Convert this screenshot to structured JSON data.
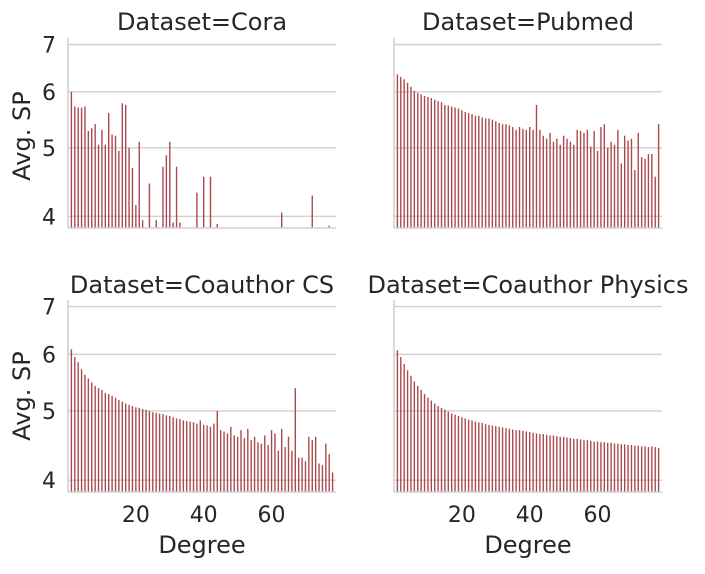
{
  "chart_data": {
    "type": "bar",
    "facet_grid": {
      "rows": 2,
      "cols": 2,
      "sharex": true,
      "sharey": true
    },
    "xlabel": "Degree",
    "ylabel": "Avg. SP",
    "xlim": [
      0,
      79
    ],
    "ylim": [
      3.85,
      7.15
    ],
    "yscale": "log",
    "xticks": [
      20,
      40,
      60
    ],
    "yticks": [
      4,
      5,
      6,
      7
    ],
    "grid": "horizontal",
    "bar_color": "#a94a4f",
    "panels": [
      {
        "title": "Dataset=Cora",
        "x": [
          1,
          2,
          3,
          4,
          5,
          6,
          7,
          8,
          9,
          10,
          11,
          12,
          13,
          14,
          15,
          16,
          17,
          18,
          19,
          20,
          21,
          22,
          24,
          26,
          28,
          29,
          30,
          31,
          32,
          33,
          38,
          40,
          42,
          44,
          63,
          72,
          77
        ],
        "values": [
          6.0,
          5.72,
          5.7,
          5.7,
          5.72,
          5.28,
          5.33,
          5.4,
          5.05,
          5.3,
          5.05,
          5.6,
          5.22,
          5.2,
          4.95,
          5.78,
          5.75,
          5.0,
          4.68,
          4.15,
          5.1,
          3.95,
          4.45,
          3.95,
          4.7,
          4.88,
          5.1,
          3.92,
          4.7,
          3.92,
          4.32,
          4.55,
          4.55,
          3.9,
          4.05,
          4.28,
          3.88
        ]
      },
      {
        "title": "Dataset=Pubmed",
        "x": [
          1,
          2,
          3,
          4,
          5,
          6,
          7,
          8,
          9,
          10,
          11,
          12,
          13,
          14,
          15,
          16,
          17,
          18,
          19,
          20,
          21,
          22,
          23,
          24,
          25,
          26,
          27,
          28,
          29,
          30,
          31,
          32,
          33,
          34,
          35,
          36,
          37,
          38,
          39,
          40,
          41,
          42,
          43,
          44,
          45,
          46,
          47,
          48,
          49,
          50,
          51,
          52,
          53,
          54,
          55,
          56,
          57,
          58,
          59,
          60,
          61,
          62,
          63,
          64,
          65,
          66,
          67,
          68,
          69,
          70,
          71,
          72,
          73,
          74,
          75,
          76,
          77,
          78
        ],
        "values": [
          6.35,
          6.3,
          6.25,
          6.18,
          6.1,
          6.02,
          5.98,
          5.95,
          5.92,
          5.9,
          5.88,
          5.85,
          5.82,
          5.8,
          5.75,
          5.74,
          5.72,
          5.7,
          5.68,
          5.65,
          5.62,
          5.6,
          5.58,
          5.55,
          5.55,
          5.52,
          5.5,
          5.5,
          5.48,
          5.45,
          5.42,
          5.4,
          5.4,
          5.38,
          5.35,
          5.3,
          5.35,
          5.32,
          5.3,
          5.35,
          5.3,
          5.75,
          5.3,
          5.2,
          5.15,
          5.25,
          5.1,
          5.15,
          5.05,
          5.2,
          5.15,
          5.1,
          5.05,
          5.3,
          5.28,
          5.25,
          5.3,
          5.02,
          5.28,
          4.95,
          5.35,
          5.4,
          5.0,
          5.1,
          5.05,
          5.3,
          4.75,
          5.2,
          5.12,
          5.15,
          4.65,
          5.25,
          4.85,
          4.82,
          4.9,
          4.9,
          4.55,
          5.4
        ]
      },
      {
        "title": "Dataset=Coauthor CS",
        "x": [
          1,
          2,
          3,
          4,
          5,
          6,
          7,
          8,
          9,
          10,
          11,
          12,
          13,
          14,
          15,
          16,
          17,
          18,
          19,
          20,
          21,
          22,
          23,
          24,
          25,
          26,
          27,
          28,
          29,
          30,
          31,
          32,
          33,
          34,
          35,
          36,
          37,
          38,
          39,
          40,
          41,
          42,
          43,
          44,
          45,
          46,
          47,
          48,
          49,
          50,
          51,
          52,
          53,
          54,
          55,
          56,
          57,
          58,
          59,
          60,
          61,
          62,
          63,
          64,
          65,
          66,
          67,
          68,
          69,
          70,
          71,
          72,
          73,
          74,
          75,
          76,
          77,
          78
        ],
        "values": [
          6.1,
          5.95,
          5.85,
          5.72,
          5.62,
          5.55,
          5.48,
          5.42,
          5.38,
          5.35,
          5.3,
          5.28,
          5.25,
          5.22,
          5.18,
          5.15,
          5.12,
          5.1,
          5.08,
          5.06,
          5.05,
          5.03,
          5.02,
          5.0,
          4.98,
          4.97,
          4.96,
          4.95,
          4.93,
          4.92,
          4.9,
          4.88,
          4.87,
          4.85,
          4.84,
          4.83,
          4.82,
          4.8,
          4.85,
          4.78,
          4.77,
          4.75,
          4.8,
          5.0,
          4.7,
          4.68,
          4.65,
          4.75,
          4.62,
          4.6,
          4.7,
          4.58,
          4.72,
          4.55,
          4.6,
          4.52,
          4.5,
          4.62,
          4.48,
          4.7,
          4.65,
          4.4,
          4.72,
          4.45,
          4.6,
          4.4,
          5.38,
          4.3,
          4.3,
          4.25,
          4.6,
          4.55,
          4.6,
          4.22,
          4.2,
          4.5,
          4.35,
          4.1
        ]
      },
      {
        "title": "Dataset=Coauthor Physics",
        "x": [
          1,
          2,
          3,
          4,
          5,
          6,
          7,
          8,
          9,
          10,
          11,
          12,
          13,
          14,
          15,
          16,
          17,
          18,
          19,
          20,
          21,
          22,
          23,
          24,
          25,
          26,
          27,
          28,
          29,
          30,
          31,
          32,
          33,
          34,
          35,
          36,
          37,
          38,
          39,
          40,
          41,
          42,
          43,
          44,
          45,
          46,
          47,
          48,
          49,
          50,
          51,
          52,
          53,
          54,
          55,
          56,
          57,
          58,
          59,
          60,
          61,
          62,
          63,
          64,
          65,
          66,
          67,
          68,
          69,
          70,
          71,
          72,
          73,
          74,
          75,
          76,
          77,
          78
        ],
        "values": [
          6.08,
          5.95,
          5.82,
          5.7,
          5.6,
          5.5,
          5.42,
          5.35,
          5.28,
          5.22,
          5.17,
          5.12,
          5.08,
          5.05,
          5.02,
          4.99,
          4.96,
          4.94,
          4.92,
          4.9,
          4.88,
          4.86,
          4.85,
          4.83,
          4.82,
          4.81,
          4.79,
          4.78,
          4.77,
          4.76,
          4.75,
          4.74,
          4.73,
          4.72,
          4.71,
          4.7,
          4.7,
          4.69,
          4.68,
          4.67,
          4.66,
          4.65,
          4.64,
          4.64,
          4.63,
          4.62,
          4.62,
          4.61,
          4.6,
          4.6,
          4.59,
          4.58,
          4.57,
          4.57,
          4.56,
          4.55,
          4.55,
          4.54,
          4.53,
          4.53,
          4.52,
          4.52,
          4.51,
          4.51,
          4.5,
          4.5,
          4.49,
          4.49,
          4.48,
          4.48,
          4.47,
          4.47,
          4.46,
          4.46,
          4.45,
          4.46,
          4.45,
          4.44
        ]
      }
    ]
  }
}
